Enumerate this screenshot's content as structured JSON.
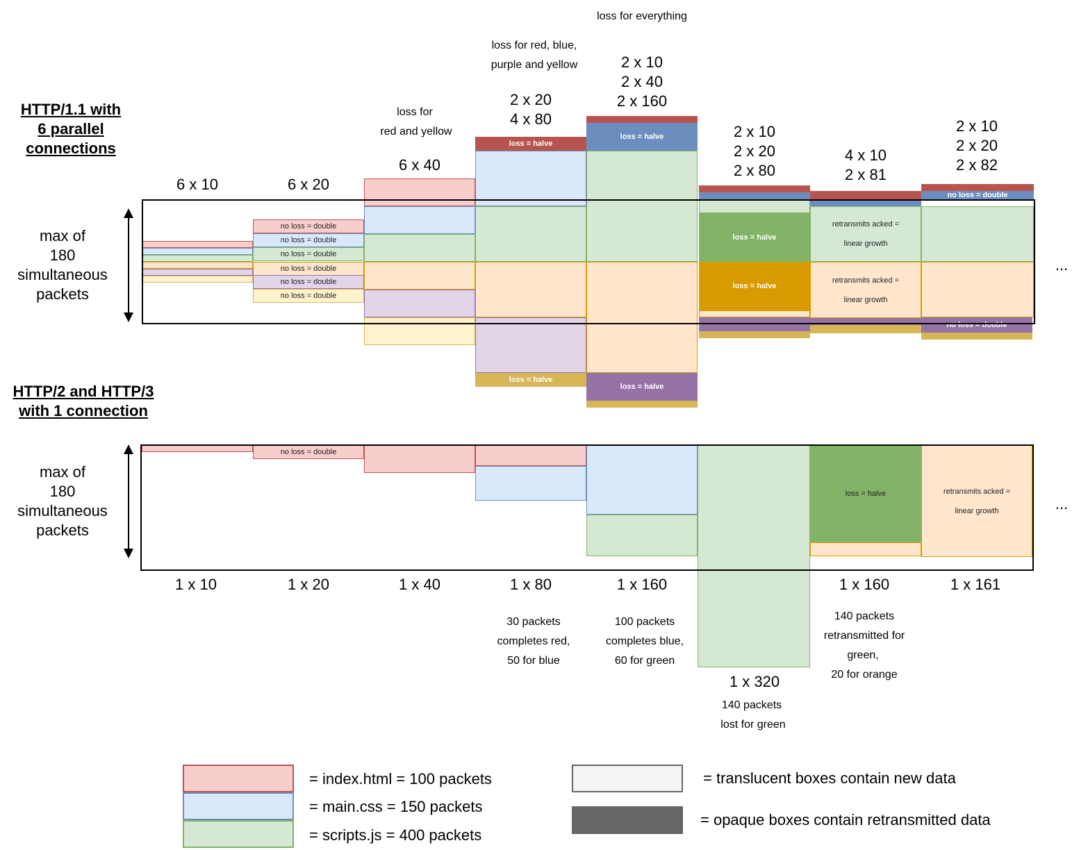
{
  "section1": {
    "title_line1": "HTTP/1.1 with",
    "title_line2": "6 parallel",
    "title_line3": "connections",
    "limit_line1": "max of",
    "limit_line2": "180",
    "limit_line3": "simultaneous",
    "limit_line4": "packets",
    "step1": "6 x 10",
    "step2": "6 x 20",
    "step3": "6 x 40",
    "step4_line1": "2 x 20",
    "step4_line2": "4 x 80",
    "step5_line1": "2 x 10",
    "step5_line2": "2 x 40",
    "step5_line3": "2 x 160",
    "step6_line1": "2 x 10",
    "step6_line2": "2 x 20",
    "step6_line3": "2 x 80",
    "step7_line1": "4 x 10",
    "step7_line2": "2 x 81",
    "step8_line1": "2 x 10",
    "step8_line2": "2 x 20",
    "step8_line3": "2 x 82",
    "note3_line1": "loss for",
    "note3_line2": "red and yellow",
    "note4_line1": "loss for red, blue,",
    "note4_line2": "purple and yellow",
    "note5": "loss for everything",
    "no_loss_double": "no loss = double",
    "loss_halve": "loss = halve",
    "retransmits_line1": "retransmits acked =",
    "retransmits_line2": "linear growth",
    "ellipsis": "..."
  },
  "section2": {
    "title_line1": "HTTP/2 and HTTP/3",
    "title_line2": "with 1 connection",
    "limit_line1": "max of",
    "limit_line2": "180",
    "limit_line3": "simultaneous",
    "limit_line4": "packets",
    "step1": "1 x 10",
    "step2": "1 x 20",
    "step3": "1 x 40",
    "step4": "1 x 80",
    "step5": "1 x 160",
    "step6": "1 x 320",
    "step7": "1 x 160",
    "step8": "1 x 161",
    "note4_line1": "30 packets",
    "note4_line2": "completes red,",
    "note4_line3": "50 for blue",
    "note5_line1": "100 packets",
    "note5_line2": "completes blue,",
    "note5_line3": "60 for green",
    "note6_line1": "140 packets",
    "note6_line2": "lost for green",
    "note7_line1": "140 packets",
    "note7_line2": "retransmitted for",
    "note7_line3": "green,",
    "note7_line4": "20 for orange",
    "no_loss_double": "no loss = double",
    "loss_halve": "loss = halve",
    "retransmits_line1": "retransmits acked =",
    "retransmits_line2": "linear growth",
    "ellipsis": "..."
  },
  "legend": {
    "index": "= index.html = 100 packets",
    "css": "= main.css = 150 packets",
    "scripts": "= scripts.js = 400 packets",
    "translucent": "= translucent boxes contain new data",
    "opaque": "= opaque boxes contain retransmitted data"
  },
  "colors": {
    "red_fill": "#f8cecc",
    "red_stroke": "#b85450",
    "red_opaque": "#b85450",
    "blue_fill": "#dae8fc",
    "blue_stroke": "#6c8ebf",
    "blue_opaque": "#6c8ebf",
    "green_fill": "#d5e8d4",
    "green_stroke": "#82b366",
    "green_opaque": "#82b366",
    "orange_fill": "#ffe6cc",
    "orange_stroke": "#d79b00",
    "orange_opaque": "#d79b00",
    "purple_fill": "#e1d5e7",
    "purple_stroke": "#9673a6",
    "purple_opaque": "#9673a6",
    "yellow_fill": "#fff2cc",
    "yellow_stroke": "#d6b656",
    "yellow_opaque": "#d6b656"
  }
}
